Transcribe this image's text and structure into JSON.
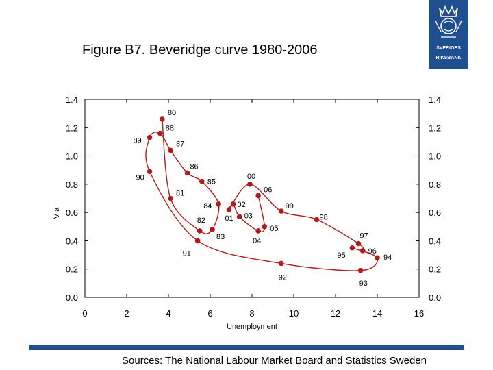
{
  "title": "Figure B7. Beveridge curve 1980-2006",
  "logo": {
    "name": "crown-emblem-icon",
    "text_lines": [
      "SVERIGES",
      "RIKSBANK"
    ]
  },
  "sources": "Sources: The National Labour Market Board and Statistics Sweden",
  "colors": {
    "series": "#b01c1c",
    "brand": "#1f4f8f"
  },
  "chart_data": {
    "type": "line",
    "title": "Figure B7. Beveridge curve 1980-2006",
    "xlabel": "Unemployment",
    "ylabel": "V a",
    "xlim": [
      0,
      16
    ],
    "ylim": [
      0,
      1.4
    ],
    "x_ticks": [
      "0",
      "2",
      "4",
      "6",
      "8",
      "10",
      "12",
      "14",
      "16"
    ],
    "y_ticks_left": [
      "0.0",
      "0.2",
      "0.4",
      "0.6",
      "0.8",
      "1.0",
      "1.2",
      "1.4"
    ],
    "y_ticks_right": [
      "0.0",
      "0.2",
      "0.4",
      "0.6",
      "0.8",
      "1.0",
      "1.2",
      "1.4"
    ],
    "grid": false,
    "series": [
      {
        "name": "Beveridge curve",
        "points": [
          {
            "label": "80",
            "x": 3.7,
            "y": 1.26
          },
          {
            "label": "81",
            "x": 4.1,
            "y": 0.7
          },
          {
            "label": "82",
            "x": 5.5,
            "y": 0.47
          },
          {
            "label": "83",
            "x": 6.1,
            "y": 0.48
          },
          {
            "label": "84",
            "x": 6.4,
            "y": 0.66
          },
          {
            "label": "85",
            "x": 5.6,
            "y": 0.82
          },
          {
            "label": "86",
            "x": 4.9,
            "y": 0.88
          },
          {
            "label": "87",
            "x": 4.1,
            "y": 1.04
          },
          {
            "label": "88",
            "x": 3.6,
            "y": 1.16
          },
          {
            "label": "89",
            "x": 3.1,
            "y": 1.13
          },
          {
            "label": "90",
            "x": 3.1,
            "y": 0.89
          },
          {
            "label": "91",
            "x": 5.4,
            "y": 0.4
          },
          {
            "label": "92",
            "x": 9.4,
            "y": 0.24
          },
          {
            "label": "93",
            "x": 13.2,
            "y": 0.19
          },
          {
            "label": "94",
            "x": 14.0,
            "y": 0.28
          },
          {
            "label": "95",
            "x": 12.8,
            "y": 0.35
          },
          {
            "label": "96",
            "x": 13.3,
            "y": 0.33
          },
          {
            "label": "97",
            "x": 13.1,
            "y": 0.38
          },
          {
            "label": "98",
            "x": 11.1,
            "y": 0.55
          },
          {
            "label": "99",
            "x": 9.4,
            "y": 0.61
          },
          {
            "label": "00",
            "x": 7.9,
            "y": 0.8
          },
          {
            "label": "01",
            "x": 6.9,
            "y": 0.62
          },
          {
            "label": "02",
            "x": 7.1,
            "y": 0.66
          },
          {
            "label": "03",
            "x": 7.4,
            "y": 0.57
          },
          {
            "label": "04",
            "x": 8.3,
            "y": 0.47
          },
          {
            "label": "05",
            "x": 8.6,
            "y": 0.5
          },
          {
            "label": "06",
            "x": 8.3,
            "y": 0.72
          }
        ]
      }
    ]
  }
}
